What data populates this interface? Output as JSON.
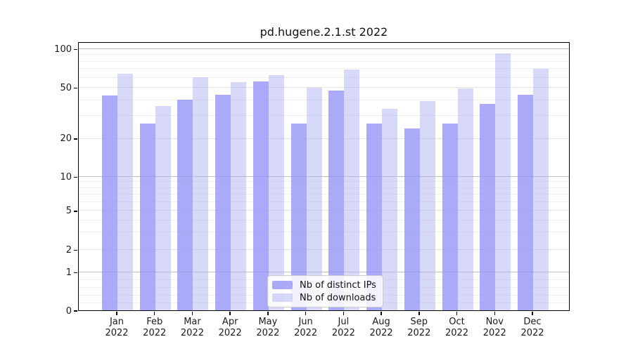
{
  "chart_data": {
    "type": "bar",
    "title": "pd.hugene.2.1.st 2022",
    "categories": [
      "Jan 2022",
      "Feb 2022",
      "Mar 2022",
      "Apr 2022",
      "May 2022",
      "Jun 2022",
      "Jul 2022",
      "Aug 2022",
      "Sep 2022",
      "Oct 2022",
      "Nov 2022",
      "Dec 2022"
    ],
    "series": [
      {
        "name": "Nb of distinct IPs",
        "values": [
          43,
          26,
          40,
          44,
          56,
          26,
          47,
          26,
          24,
          26,
          37,
          44
        ]
      },
      {
        "name": "Nb of downloads",
        "values": [
          64,
          36,
          60,
          55,
          62,
          50,
          69,
          34,
          39,
          49,
          92,
          70
        ]
      }
    ],
    "xlabel": "",
    "ylabel": "",
    "yscale": "log-like (symlog, linear below 1)",
    "yticks": [
      0,
      1,
      2,
      5,
      10,
      20,
      50,
      100
    ],
    "ylim": [
      0,
      110
    ],
    "grid": true,
    "legend_position": "lower center"
  },
  "colors": {
    "bar_distinct_ips": "rgba(149,149,246,0.80)",
    "bar_downloads": "rgba(177,177,241,0.50)",
    "grid_decade": "#bfbfbf",
    "grid_labeled": "#e3e3e3",
    "grid_minor": "#f0f0f0",
    "axis": "#000000",
    "text": "#1a1a1a"
  }
}
